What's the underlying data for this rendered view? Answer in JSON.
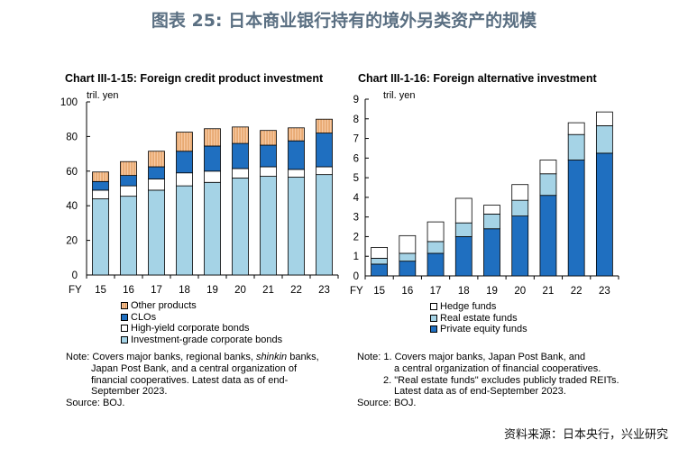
{
  "figure_title": "图表 25: 日本商业银行持有的境外另类资产的规模",
  "colors": {
    "investment_grade": "#a5d3e6",
    "high_yield": "#ffffff",
    "clos": "#1f6fc0",
    "other": "#f7c9a2",
    "private_equity": "#1f6fc0",
    "real_estate": "#a5d3e6",
    "hedge": "#ffffff",
    "title": "#5a6f82"
  },
  "chart_data": [
    {
      "type": "bar",
      "stacked": true,
      "title": "Chart III-1-15: Foreign credit product investment",
      "unit": "tril. yen",
      "xlabel": "FY",
      "categories": [
        "15",
        "16",
        "17",
        "18",
        "19",
        "20",
        "21",
        "22",
        "23"
      ],
      "ylim": [
        0,
        100
      ],
      "yticks": [
        "0",
        "20",
        "40",
        "60",
        "80",
        "100"
      ],
      "series": [
        {
          "name": "Investment-grade corporate bonds",
          "color": "#a5d3e6",
          "values": [
            44,
            45.5,
            49,
            51.5,
            53.5,
            56,
            57,
            56.5,
            58
          ]
        },
        {
          "name": "High-yield corporate bonds",
          "color": "#ffffff",
          "values": [
            5,
            6,
            6.5,
            7.5,
            6.5,
            5.5,
            5.5,
            4.5,
            4.5
          ]
        },
        {
          "name": "CLOs",
          "color": "#1f6fc0",
          "values": [
            5,
            6,
            7,
            12.5,
            14.5,
            14.5,
            12.5,
            16.5,
            19.5
          ]
        },
        {
          "name": "Other products",
          "color": "#f7c9a2",
          "values": [
            5.5,
            8,
            9,
            11,
            10,
            9.5,
            8.5,
            7.5,
            8
          ]
        }
      ],
      "legend": [
        "Other products",
        "CLOs",
        "High-yield corporate bonds",
        "Investment-grade corporate bonds"
      ],
      "notes": [
        "Note: Covers major banks, regional banks, ",
        "shinkin",
        " banks,",
        "Japan Post Bank, and a central organization of",
        "financial cooperatives. Latest data as of end-",
        "September 2023.",
        "Source: BOJ."
      ]
    },
    {
      "type": "bar",
      "stacked": true,
      "title": "Chart III-1-16: Foreign alternative investment",
      "unit": "tril. yen",
      "xlabel": "FY",
      "categories": [
        "15",
        "16",
        "17",
        "18",
        "19",
        "20",
        "21",
        "22",
        "23"
      ],
      "ylim": [
        0,
        9
      ],
      "yticks": [
        "0",
        "1",
        "2",
        "3",
        "4",
        "5",
        "6",
        "7",
        "8",
        "9"
      ],
      "series": [
        {
          "name": "Private equity funds",
          "color": "#1f6fc0",
          "values": [
            0.6,
            0.75,
            1.15,
            2.0,
            2.4,
            3.05,
            4.1,
            5.9,
            6.25
          ]
        },
        {
          "name": "Real estate funds",
          "color": "#a5d3e6",
          "values": [
            0.3,
            0.4,
            0.6,
            0.7,
            0.75,
            0.8,
            1.1,
            1.3,
            1.4
          ]
        },
        {
          "name": "Hedge funds",
          "color": "#ffffff",
          "values": [
            0.55,
            0.9,
            1.0,
            1.25,
            0.45,
            0.8,
            0.7,
            0.6,
            0.7
          ]
        }
      ],
      "legend": [
        "Hedge funds",
        "Real estate funds",
        "Private equity funds"
      ],
      "notes": [
        "Note: 1. Covers major banks, Japan Post Bank, and",
        "a central organization of financial cooperatives.",
        "2. \"Real estate funds\" excludes publicly traded REITs.",
        "Latest data as of end-September 2023.",
        "Source: BOJ."
      ]
    }
  ],
  "source_credit": "资料来源：日本央行，兴业研究"
}
